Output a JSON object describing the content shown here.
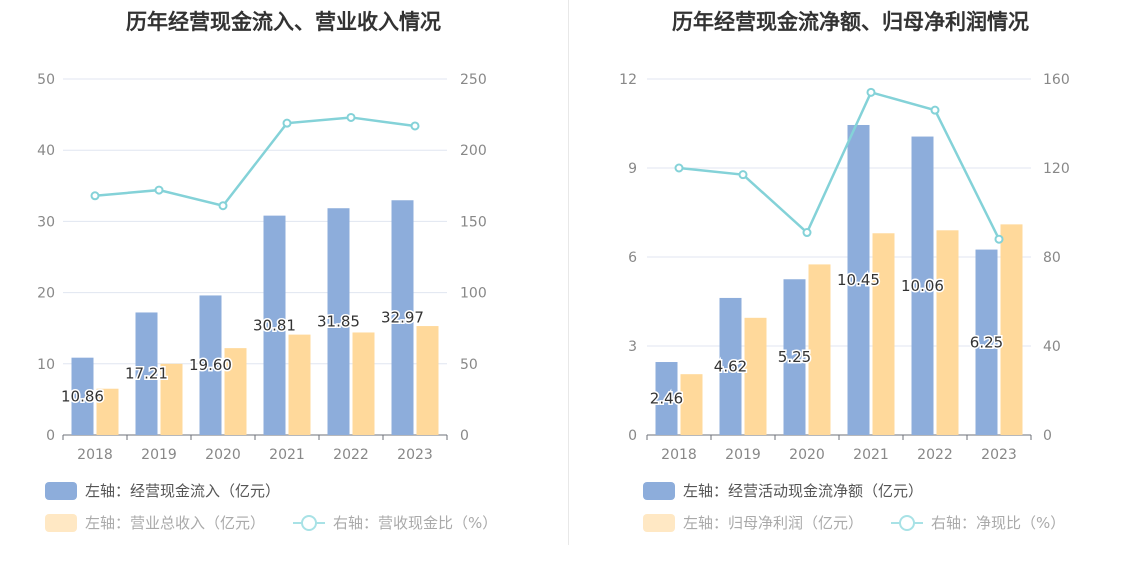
{
  "chart_data": [
    {
      "type": "bar",
      "title": "历年经营现金流入、营业收入情况",
      "categories": [
        "2018",
        "2019",
        "2020",
        "2021",
        "2022",
        "2023"
      ],
      "left_axis": {
        "range": [
          0,
          50
        ],
        "ticks": [
          "0",
          "10",
          "20",
          "30",
          "40",
          "50"
        ]
      },
      "right_axis": {
        "range": [
          0,
          250
        ],
        "ticks": [
          "0",
          "50",
          "100",
          "150",
          "200",
          "250"
        ]
      },
      "series": [
        {
          "name": "左轴：经营现金流入（亿元）",
          "type": "bar",
          "axis": "left",
          "color": "#8daddb",
          "values": [
            10.86,
            17.21,
            19.6,
            30.81,
            31.85,
            32.97
          ],
          "labels": [
            "10.86",
            "17.21",
            "19.60",
            "30.81",
            "31.85",
            "32.97"
          ]
        },
        {
          "name": "左轴：营业总收入（亿元）",
          "type": "bar",
          "axis": "left",
          "color": "#ffd99b",
          "values": [
            6.5,
            10.0,
            12.2,
            14.1,
            14.4,
            15.3
          ]
        },
        {
          "name": "右轴：营收现金比（%）",
          "type": "line",
          "axis": "right",
          "color": "#84d2d8",
          "values": [
            168,
            172,
            161,
            219,
            223,
            217
          ]
        }
      ],
      "legend": [
        {
          "label": "左轴：经营现金流入（亿元）",
          "kind": "bar",
          "color": "#8daddb"
        },
        {
          "label": "左轴：营业总收入（亿元）",
          "kind": "bar",
          "color": "#ffe8c4"
        },
        {
          "label": "右轴：营收现金比（%）",
          "kind": "line",
          "color": "#a8e2e6"
        }
      ],
      "grid": true,
      "legend_position": "bottom-left"
    },
    {
      "type": "bar",
      "title": "历年经营现金流净额、归母净利润情况",
      "categories": [
        "2018",
        "2019",
        "2020",
        "2021",
        "2022",
        "2023"
      ],
      "left_axis": {
        "range": [
          0,
          12
        ],
        "ticks": [
          "0",
          "3",
          "6",
          "9",
          "12"
        ]
      },
      "right_axis": {
        "range": [
          0,
          160
        ],
        "ticks": [
          "0",
          "40",
          "80",
          "120",
          "160"
        ]
      },
      "series": [
        {
          "name": "左轴：经营活动现金流净额（亿元）",
          "type": "bar",
          "axis": "left",
          "color": "#8daddb",
          "values": [
            2.46,
            4.62,
            5.25,
            10.45,
            10.06,
            6.25
          ],
          "labels": [
            "2.46",
            "4.62",
            "5.25",
            "10.45",
            "10.06",
            "6.25"
          ]
        },
        {
          "name": "左轴：归母净利润（亿元）",
          "type": "bar",
          "axis": "left",
          "color": "#ffd99b",
          "values": [
            2.05,
            3.95,
            5.75,
            6.8,
            6.9,
            7.1
          ]
        },
        {
          "name": "右轴：净现比（%）",
          "type": "line",
          "axis": "right",
          "color": "#84d2d8",
          "values": [
            120,
            117,
            91,
            154,
            146,
            88
          ]
        }
      ],
      "legend": [
        {
          "label": "左轴：经营活动现金流净额（亿元）",
          "kind": "bar",
          "color": "#8daddb"
        },
        {
          "label": "左轴：归母净利润（亿元）",
          "kind": "bar",
          "color": "#ffe8c4"
        },
        {
          "label": "右轴：净现比（%）",
          "kind": "line",
          "color": "#a8e2e6"
        }
      ],
      "grid": true,
      "legend_position": "bottom-left"
    }
  ]
}
